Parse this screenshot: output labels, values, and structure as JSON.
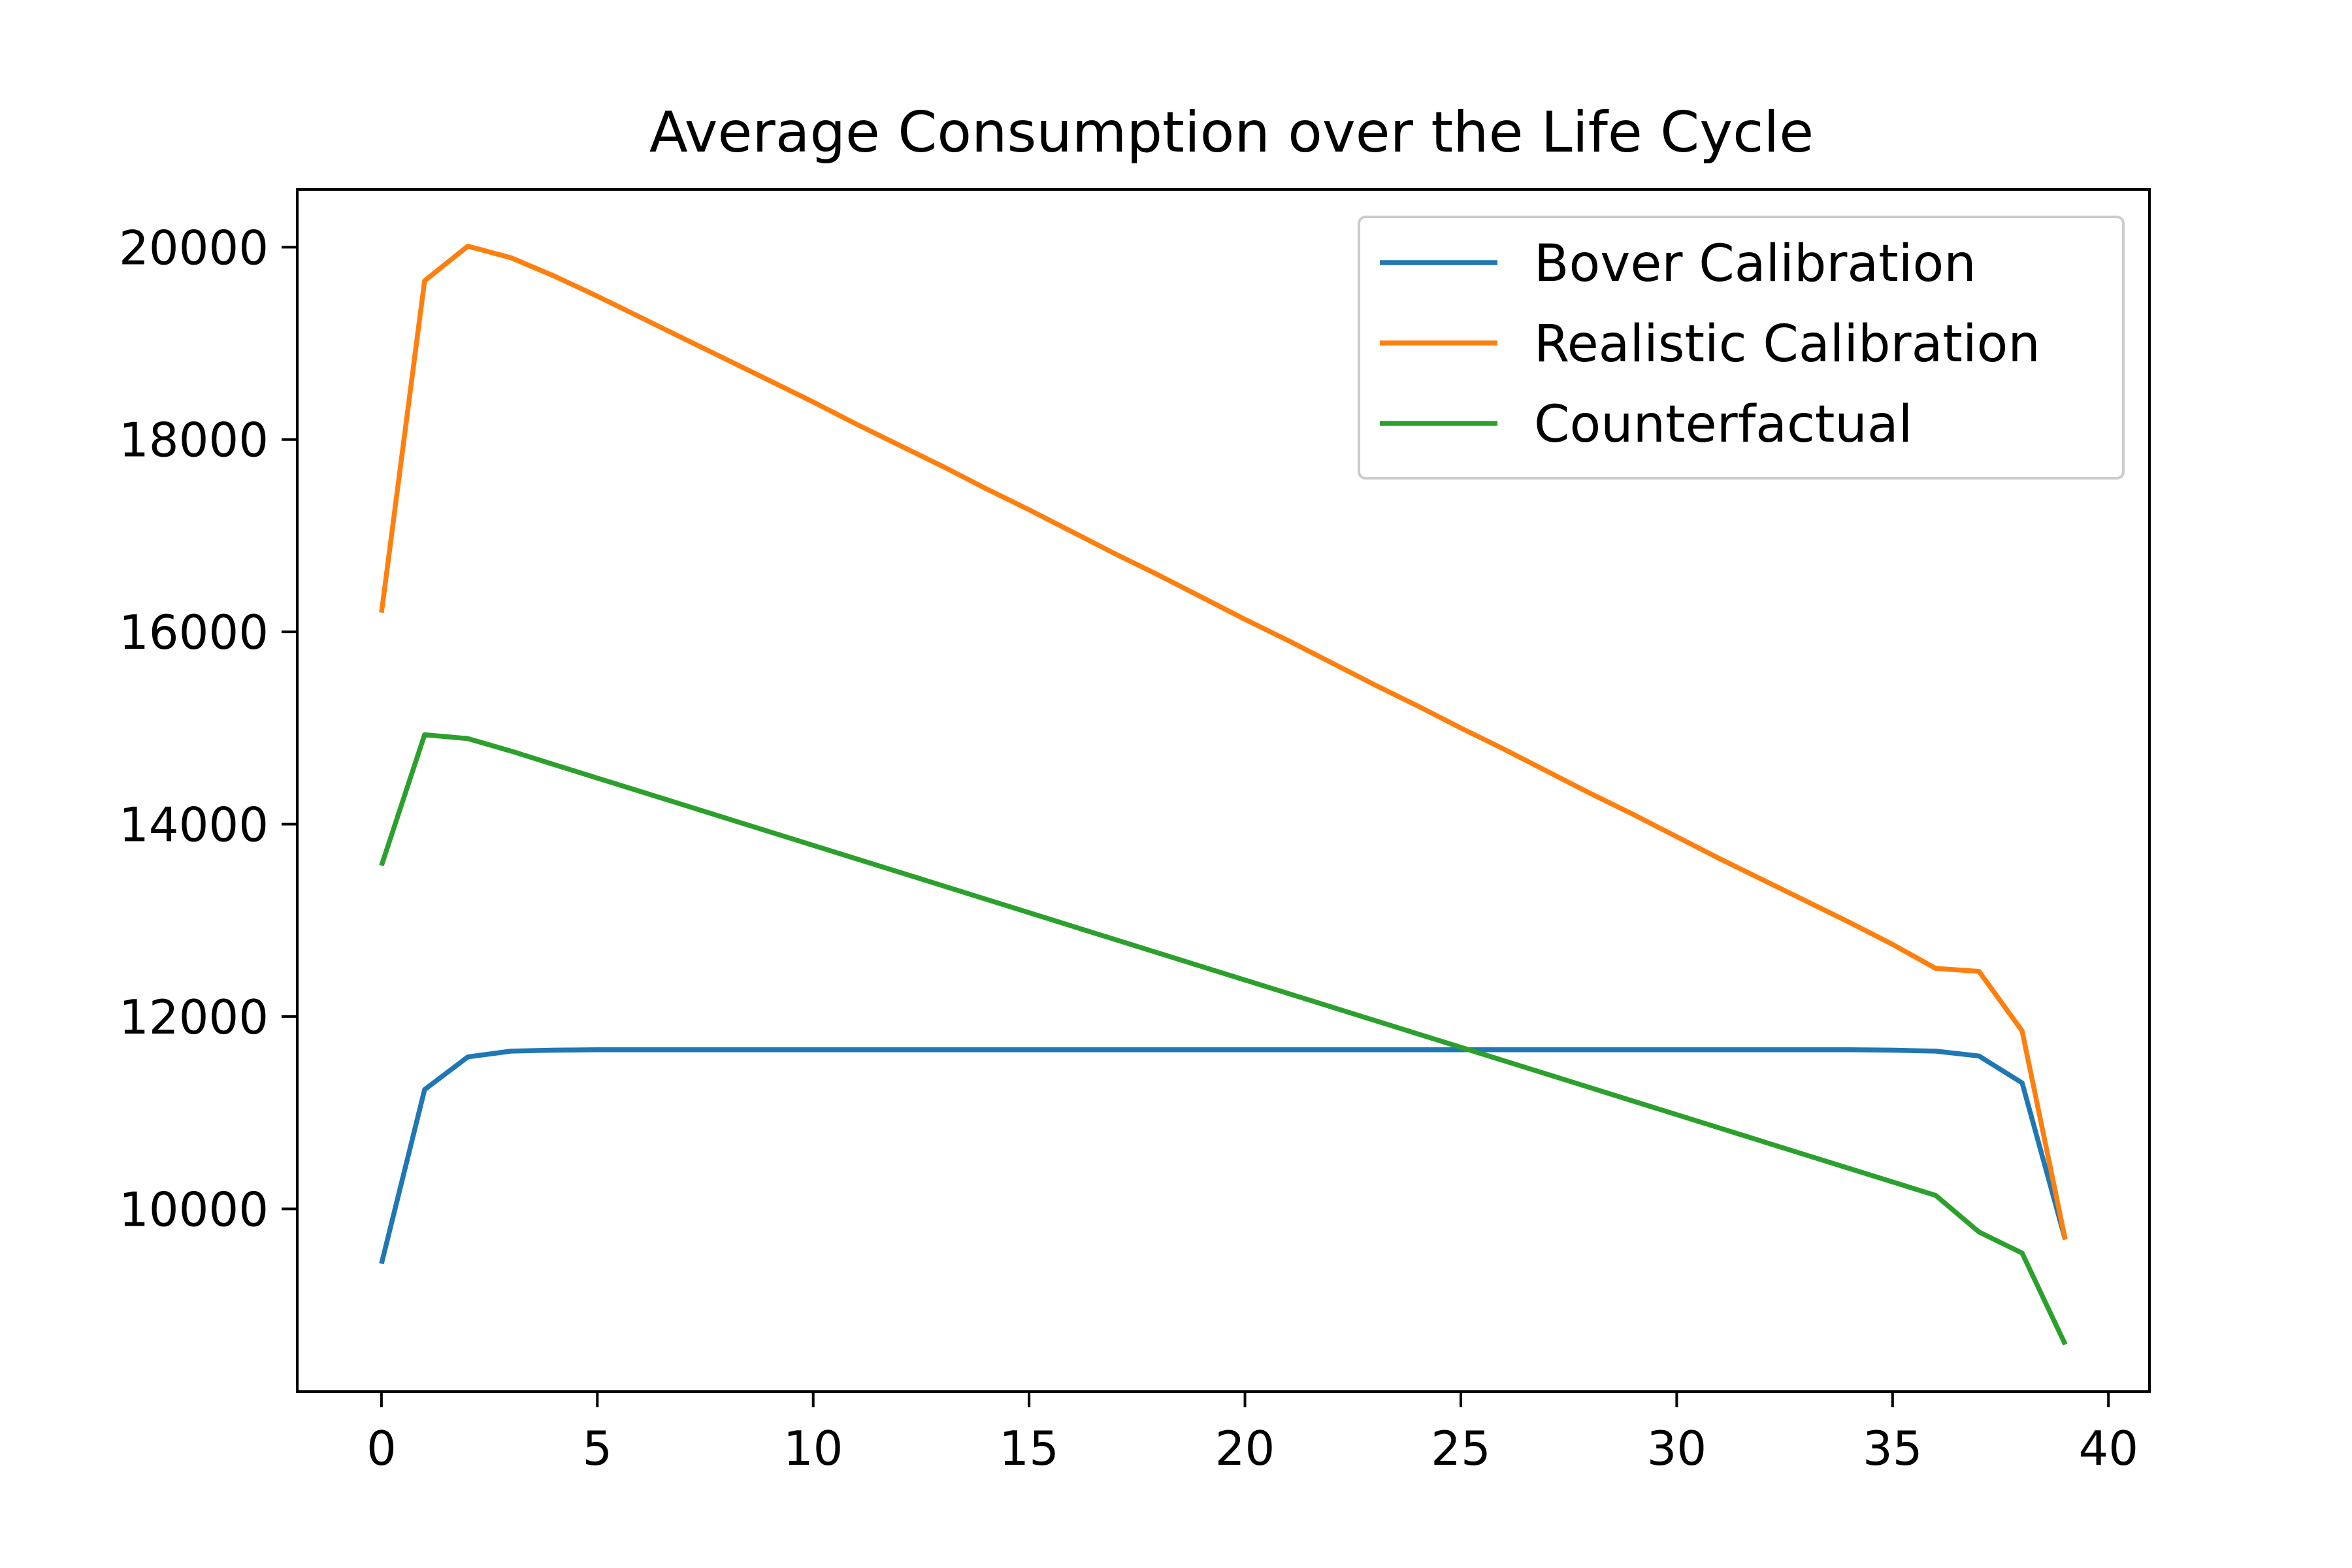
{
  "chart_data": {
    "type": "line",
    "title": "Average Consumption over the Life Cycle",
    "xlabel": "",
    "ylabel": "",
    "xlim": [
      -1.95,
      40.95
    ],
    "ylim": [
      8100,
      20600
    ],
    "xticks": [
      0,
      5,
      10,
      15,
      20,
      25,
      30,
      35,
      40
    ],
    "yticks": [
      10000,
      12000,
      14000,
      16000,
      18000,
      20000
    ],
    "grid": false,
    "legend_position": "top-right",
    "x": [
      0,
      1,
      2,
      3,
      4,
      5,
      6,
      7,
      8,
      9,
      10,
      11,
      12,
      13,
      14,
      15,
      16,
      17,
      18,
      19,
      20,
      21,
      22,
      23,
      24,
      25,
      26,
      27,
      28,
      29,
      30,
      31,
      32,
      33,
      34,
      35,
      36,
      37,
      38,
      39
    ],
    "series": [
      {
        "name": "Bover Calibration",
        "color": "#1f77b4",
        "values": [
          9430,
          11240,
          11580,
          11640,
          11650,
          11655,
          11655,
          11655,
          11655,
          11655,
          11655,
          11655,
          11655,
          11655,
          11655,
          11655,
          11655,
          11655,
          11655,
          11655,
          11655,
          11655,
          11655,
          11655,
          11655,
          11655,
          11655,
          11655,
          11655,
          11655,
          11655,
          11655,
          11655,
          11655,
          11655,
          11650,
          11640,
          11590,
          11310,
          9680
        ]
      },
      {
        "name": "Realistic Calibration",
        "color": "#ff7f0e",
        "values": [
          16200,
          19650,
          20010,
          19890,
          19700,
          19490,
          19270,
          19050,
          18830,
          18610,
          18390,
          18160,
          17940,
          17720,
          17490,
          17270,
          17040,
          16810,
          16590,
          16360,
          16130,
          15910,
          15680,
          15450,
          15230,
          15000,
          14780,
          14550,
          14320,
          14100,
          13870,
          13640,
          13420,
          13200,
          12980,
          12750,
          12500,
          12470,
          11850,
          9680
        ]
      },
      {
        "name": "Counterfactual",
        "color": "#2ca02c",
        "values": [
          13570,
          14930,
          14890,
          14760,
          14620,
          14480,
          14340,
          14200,
          14060,
          13920,
          13780,
          13640,
          13500,
          13360,
          13220,
          13080,
          12940,
          12800,
          12660,
          12520,
          12380,
          12240,
          12100,
          11960,
          11820,
          11680,
          11540,
          11400,
          11260,
          11120,
          10980,
          10840,
          10700,
          10560,
          10420,
          10280,
          10140,
          9760,
          9540,
          8590
        ]
      }
    ]
  }
}
